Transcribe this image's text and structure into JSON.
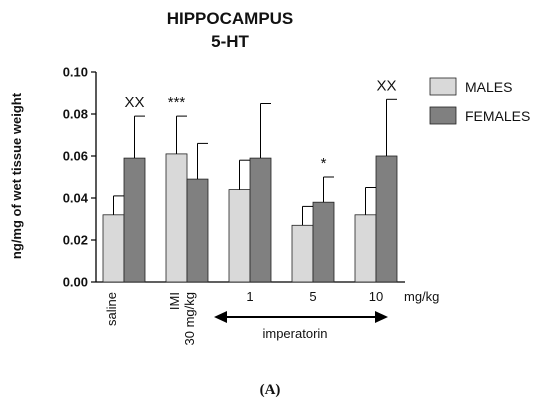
{
  "chart_data": {
    "type": "bar",
    "title": "HIPPOCAMPUS",
    "subtitle": "5-HT",
    "ylabel": "ng/mg of wet tissue weight",
    "ylim": [
      0,
      0.1
    ],
    "yticks": [
      "0.00",
      "0.02",
      "0.04",
      "0.06",
      "0.08",
      "0.10"
    ],
    "categories": [
      "saline",
      "IMI 30 mg/kg",
      "1",
      "5",
      "10"
    ],
    "category_lines": [
      [
        "saline"
      ],
      [
        "IMI",
        "30 mg/kg"
      ],
      [
        "1"
      ],
      [
        "5"
      ],
      [
        "10"
      ]
    ],
    "x_unit": "mg/kg",
    "group_label": "imperatorin",
    "series": [
      {
        "name": "MALES",
        "color": "#d9d9d9",
        "values": [
          0.032,
          0.061,
          0.044,
          0.027,
          0.032
        ],
        "errors": [
          0.009,
          0.018,
          0.014,
          0.009,
          0.013
        ]
      },
      {
        "name": "FEMALES",
        "color": "#808080",
        "values": [
          0.059,
          0.049,
          0.059,
          0.038,
          0.06
        ],
        "errors": [
          0.02,
          0.017,
          0.026,
          0.012,
          0.027
        ]
      }
    ],
    "annotations": [
      {
        "category": 0,
        "series": 1,
        "text": "XX"
      },
      {
        "category": 1,
        "series": 0,
        "text": "***"
      },
      {
        "category": 3,
        "series": 1,
        "text": "*"
      },
      {
        "category": 4,
        "series": 1,
        "text": "XX"
      }
    ],
    "legend_position": "top-right",
    "grid": false,
    "panel_label": "(A)"
  }
}
